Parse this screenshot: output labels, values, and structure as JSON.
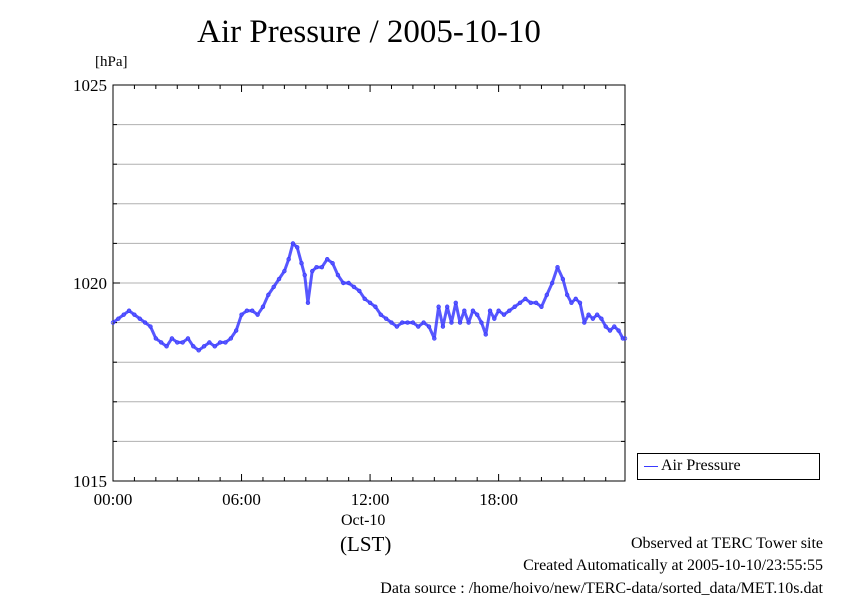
{
  "chart_data": {
    "type": "line",
    "title": "Air Pressure / 2005-10-10",
    "y_unit": "[hPa]",
    "ylim": [
      1015,
      1025
    ],
    "y_ticks": [
      "1015",
      "1020",
      "1025"
    ],
    "x_unit": "hours",
    "xlim": [
      0,
      23.9
    ],
    "x_ticks": [
      {
        "value": 0,
        "label": "00:00"
      },
      {
        "value": 6,
        "label": "06:00"
      },
      {
        "value": 12,
        "label": "12:00"
      },
      {
        "value": 18,
        "label": "18:00"
      }
    ],
    "date_label": "Oct-10",
    "timezone_label": "(LST)",
    "grid": true,
    "legend_position": "right",
    "series": [
      {
        "name": "Air Pressure",
        "color": "#3a3aff",
        "x": [
          0.0,
          0.25,
          0.5,
          0.75,
          1.0,
          1.25,
          1.5,
          1.75,
          2.0,
          2.25,
          2.5,
          2.75,
          3.0,
          3.25,
          3.5,
          3.75,
          4.0,
          4.25,
          4.5,
          4.75,
          5.0,
          5.25,
          5.5,
          5.75,
          6.0,
          6.25,
          6.5,
          6.75,
          7.0,
          7.25,
          7.5,
          7.75,
          8.0,
          8.2,
          8.4,
          8.6,
          8.8,
          8.95,
          9.1,
          9.3,
          9.5,
          9.75,
          10.0,
          10.25,
          10.5,
          10.75,
          11.0,
          11.25,
          11.5,
          11.75,
          12.0,
          12.25,
          12.5,
          12.75,
          13.0,
          13.25,
          13.5,
          13.75,
          14.0,
          14.25,
          14.5,
          14.75,
          15.0,
          15.2,
          15.4,
          15.6,
          15.8,
          16.0,
          16.2,
          16.4,
          16.6,
          16.8,
          17.0,
          17.2,
          17.4,
          17.6,
          17.8,
          18.0,
          18.25,
          18.5,
          18.75,
          19.0,
          19.25,
          19.5,
          19.75,
          20.0,
          20.25,
          20.5,
          20.75,
          21.0,
          21.2,
          21.4,
          21.6,
          21.8,
          22.0,
          22.2,
          22.4,
          22.6,
          22.8,
          23.0,
          23.2,
          23.4,
          23.6,
          23.8,
          23.9
        ],
        "y": [
          1019.0,
          1019.1,
          1019.2,
          1019.3,
          1019.2,
          1019.1,
          1019.0,
          1018.9,
          1018.6,
          1018.5,
          1018.4,
          1018.6,
          1018.5,
          1018.5,
          1018.6,
          1018.4,
          1018.3,
          1018.4,
          1018.5,
          1018.4,
          1018.5,
          1018.5,
          1018.6,
          1018.8,
          1019.2,
          1019.3,
          1019.3,
          1019.2,
          1019.4,
          1019.7,
          1019.9,
          1020.1,
          1020.3,
          1020.6,
          1021.0,
          1020.9,
          1020.5,
          1020.2,
          1019.5,
          1020.3,
          1020.4,
          1020.4,
          1020.6,
          1020.5,
          1020.2,
          1020.0,
          1020.0,
          1019.9,
          1019.8,
          1019.6,
          1019.5,
          1019.4,
          1019.2,
          1019.1,
          1019.0,
          1018.9,
          1019.0,
          1019.0,
          1019.0,
          1018.9,
          1019.0,
          1018.9,
          1018.6,
          1019.4,
          1018.9,
          1019.4,
          1019.0,
          1019.5,
          1019.0,
          1019.3,
          1019.0,
          1019.3,
          1019.2,
          1019.0,
          1018.7,
          1019.3,
          1019.1,
          1019.3,
          1019.2,
          1019.3,
          1019.4,
          1019.5,
          1019.6,
          1019.5,
          1019.5,
          1019.4,
          1019.7,
          1020.0,
          1020.4,
          1020.1,
          1019.7,
          1019.5,
          1019.6,
          1019.5,
          1019.0,
          1019.2,
          1019.1,
          1019.2,
          1019.1,
          1018.9,
          1018.8,
          1018.9,
          1018.8,
          1018.6,
          1018.6
        ]
      }
    ]
  },
  "footer": {
    "observed": "Observed at TERC Tower site",
    "created": "Created Automatically at 2005-10-10/23:55:55",
    "source": "Data source : /home/hoivo/new/TERC-data/sorted_data/MET.10s.dat"
  }
}
